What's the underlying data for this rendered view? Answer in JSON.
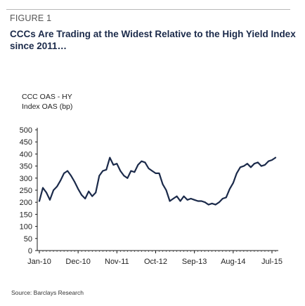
{
  "figure": {
    "label": "FIGURE 1",
    "title": "CCCs Are Trading at the Widest Relative to the High Yield Index since 2011…",
    "source": "Source: Barclays Research"
  },
  "chart_data": {
    "type": "line",
    "title": "CCCs Are Trading at the Widest Relative to the High Yield Index since 2011…",
    "ylabel": "CCC OAS - HY Index OAS (bp)",
    "xlabel": "",
    "ylim": [
      0,
      500
    ],
    "yticks": [
      0,
      50,
      100,
      150,
      200,
      250,
      300,
      350,
      400,
      450,
      500
    ],
    "xticks": [
      "Jan-10",
      "Dec-10",
      "Nov-11",
      "Oct-12",
      "Sep-13",
      "Aug-14",
      "Jul-15"
    ],
    "grid": false,
    "legend": "none",
    "line_color": "#1b2a4a",
    "series": [
      {
        "x": [
          "Jan-10",
          "Feb-10",
          "Mar-10",
          "Apr-10",
          "May-10",
          "Jun-10",
          "Jul-10",
          "Aug-10",
          "Sep-10",
          "Oct-10",
          "Nov-10",
          "Dec-10",
          "Jan-11",
          "Feb-11",
          "Mar-11",
          "Apr-11",
          "May-11",
          "Jun-11",
          "Jul-11",
          "Aug-11",
          "Sep-11",
          "Oct-11",
          "Nov-11",
          "Dec-11",
          "Jan-12",
          "Feb-12",
          "Mar-12",
          "Apr-12",
          "May-12",
          "Jun-12",
          "Jul-12",
          "Aug-12",
          "Sep-12",
          "Oct-12",
          "Nov-12",
          "Dec-12",
          "Jan-13",
          "Feb-13",
          "Mar-13",
          "Apr-13",
          "May-13",
          "Jun-13",
          "Jul-13",
          "Aug-13",
          "Sep-13",
          "Oct-13",
          "Nov-13",
          "Dec-13",
          "Jan-14",
          "Feb-14",
          "Mar-14",
          "Apr-14",
          "May-14",
          "Jun-14",
          "Jul-14",
          "Aug-14",
          "Sep-14",
          "Oct-14",
          "Nov-14",
          "Dec-14",
          "Jan-15",
          "Feb-15",
          "Mar-15",
          "Apr-15",
          "May-15",
          "Jun-15",
          "Jul-15",
          "Aug-15"
        ],
        "values": [
          205,
          260,
          240,
          210,
          250,
          265,
          290,
          320,
          330,
          310,
          285,
          255,
          230,
          215,
          245,
          225,
          240,
          310,
          330,
          335,
          385,
          355,
          360,
          330,
          310,
          300,
          330,
          325,
          355,
          370,
          365,
          340,
          330,
          320,
          320,
          275,
          250,
          205,
          215,
          225,
          205,
          225,
          210,
          215,
          210,
          205,
          205,
          200,
          190,
          195,
          190,
          200,
          215,
          220,
          255,
          280,
          320,
          345,
          350,
          360,
          345,
          360,
          365,
          350,
          355,
          370,
          375,
          385
        ]
      }
    ]
  }
}
